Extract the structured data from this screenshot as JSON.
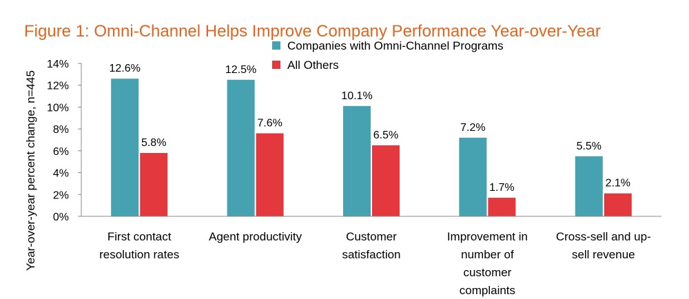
{
  "chart_data": {
    "type": "bar",
    "title": "Figure 1: Omni-Channel Helps Improve Company Performance Year-over-Year",
    "xlabel": "",
    "ylabel": "Year-over-year percent change, n=445",
    "ylim": [
      0,
      14
    ],
    "yticks": [
      "0%",
      "2%",
      "4%",
      "6%",
      "8%",
      "10%",
      "12%",
      "14%"
    ],
    "categories": [
      [
        "First contact",
        "resolution rates"
      ],
      [
        "Agent productivity"
      ],
      [
        "Customer",
        "satisfaction"
      ],
      [
        "Improvement in",
        "number of",
        "customer",
        "complaints"
      ],
      [
        "Cross-sell and up-",
        "sell revenue"
      ]
    ],
    "series": [
      {
        "name": "Companies with Omni-Channel  Programs",
        "color": "#46A1B1",
        "values": [
          12.6,
          12.5,
          10.1,
          7.2,
          5.5
        ],
        "labels": [
          "12.6%",
          "12.5%",
          "10.1%",
          "7.2%",
          "5.5%"
        ]
      },
      {
        "name": "All Others",
        "color": "#E3393E",
        "values": [
          5.8,
          7.6,
          6.5,
          1.7,
          2.1
        ],
        "labels": [
          "5.8%",
          "7.6%",
          "6.5%",
          "1.7%",
          "2.1%"
        ]
      }
    ],
    "legend_position": "top-center"
  }
}
